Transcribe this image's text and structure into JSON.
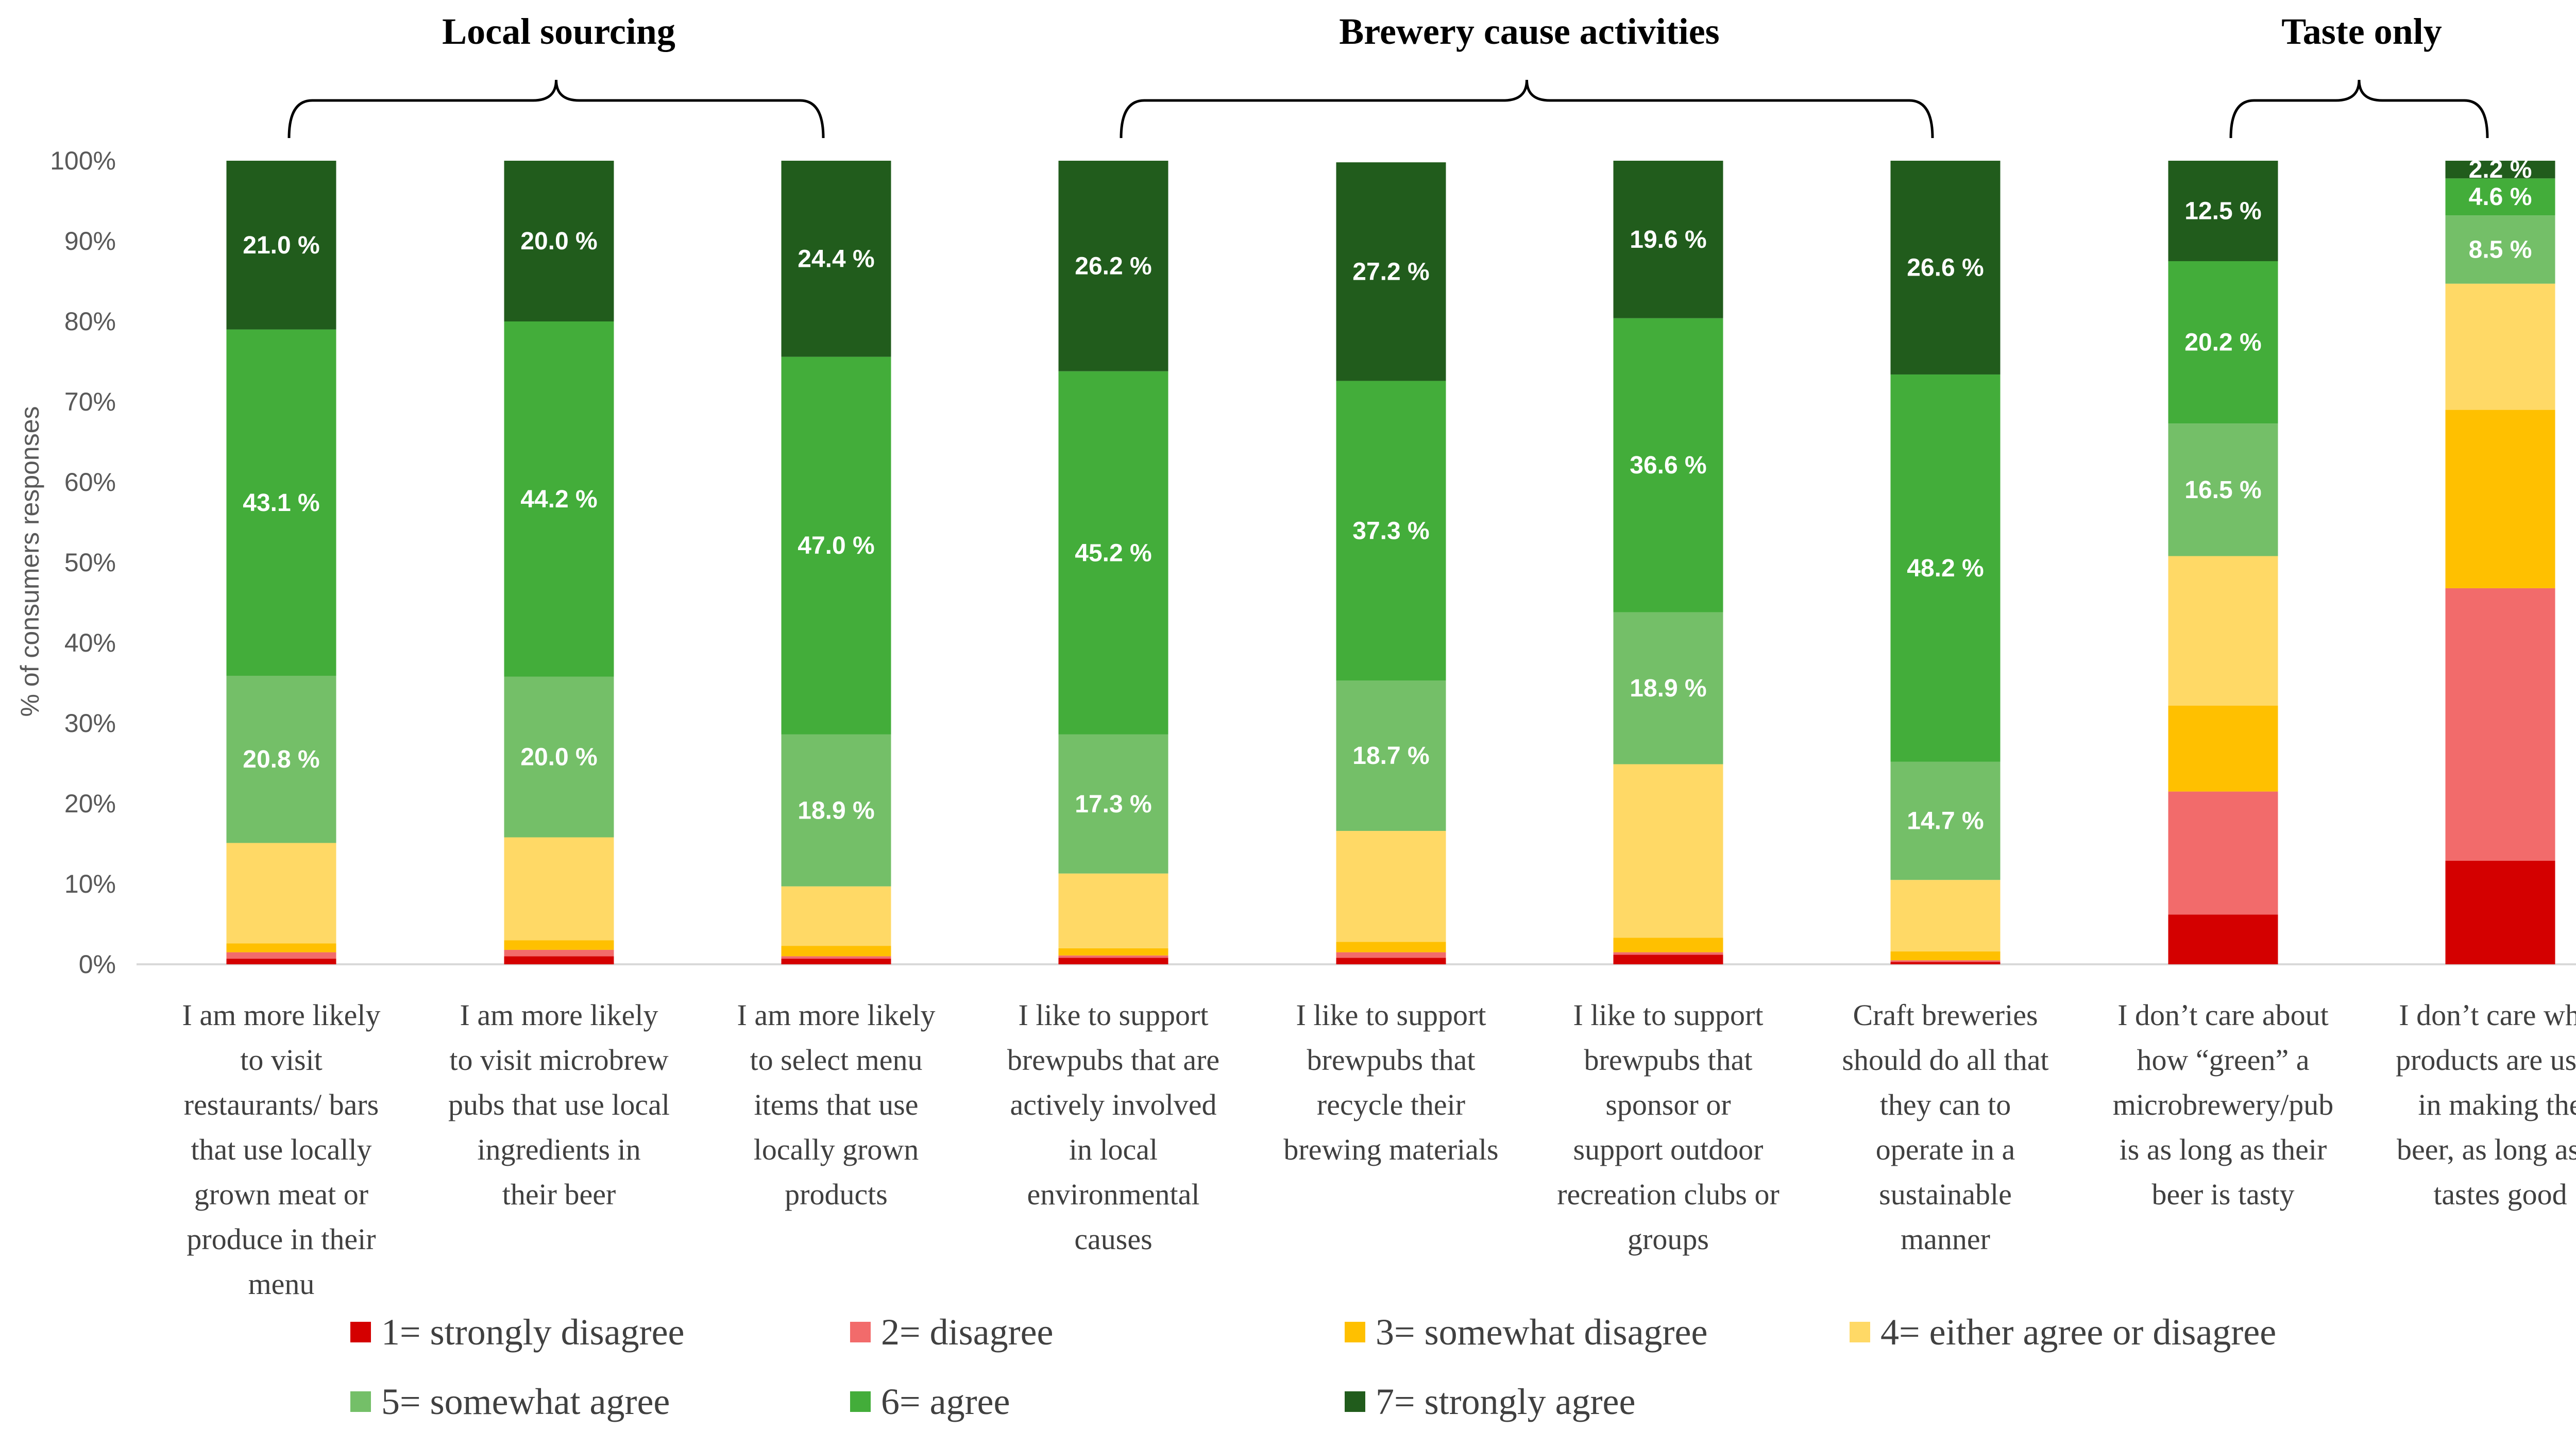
{
  "chart_data": {
    "type": "bar",
    "stacked": true,
    "percent": true,
    "ylabel": "% of consumers responses",
    "ylim": [
      0,
      100
    ],
    "yticks": [
      "0%",
      "10%",
      "20%",
      "30%",
      "40%",
      "50%",
      "60%",
      "70%",
      "80%",
      "90%",
      "100%"
    ],
    "grid": false,
    "legend_position": "bottom",
    "groups": [
      {
        "label": "Local sourcing",
        "from": 0,
        "to": 2
      },
      {
        "label": "Brewery cause activities",
        "from": 3,
        "to": 6
      },
      {
        "label": "Taste only",
        "from": 7,
        "to": 8
      }
    ],
    "categories": [
      "I am more likely to visit restaurants/ bars that use locally grown meat or produce in their menu",
      "I am more likely to visit microbrew pubs that use local ingredients in their beer",
      "I am more likely to select menu items that use locally grown products",
      "I like to support brewpubs that are actively involved in local environmental causes",
      "I like to support brewpubs that recycle their brewing materials",
      "I like to support brewpubs that sponsor or support outdoor recreation clubs or groups",
      "Craft breweries should do all that they can to operate in a sustainable manner",
      "I don’t care about how “green” a microbrewery/pub is as long as their beer is tasty",
      "I don’t care what products are used in making the beer, as long as it tastes good"
    ],
    "category_lines": [
      [
        "I am more likely",
        "to visit",
        "restaurants/ bars",
        "that use locally",
        "grown meat or",
        "produce in their",
        "menu"
      ],
      [
        "I am more likely",
        "to visit microbrew",
        "pubs that use local",
        "ingredients in",
        "their beer"
      ],
      [
        "I am more likely",
        "to select menu",
        "items that use",
        "locally grown",
        "products"
      ],
      [
        "I like to support",
        "brewpubs that are",
        "actively involved",
        "in local",
        "environmental",
        "causes"
      ],
      [
        "I like to support",
        "brewpubs that",
        "recycle their",
        "brewing materials"
      ],
      [
        "I like to support",
        "brewpubs that",
        "sponsor or",
        "support outdoor",
        "recreation clubs or",
        "groups"
      ],
      [
        "Craft breweries",
        "should do all that",
        "they can to",
        "operate in a",
        "sustainable",
        "manner"
      ],
      [
        "I don’t care about",
        "how “green” a",
        "microbrewery/pub",
        "is as long as their",
        "beer is tasty"
      ],
      [
        "I don’t care what",
        "products are used",
        "in making the",
        "beer, as long as it",
        "tastes good"
      ]
    ],
    "series": [
      {
        "name": "1= strongly disagree",
        "color": "#d40000",
        "values": [
          0.7,
          1.0,
          0.7,
          0.8,
          0.8,
          1.2,
          0.3,
          6.2,
          12.9
        ]
      },
      {
        "name": "2= disagree",
        "color": "#f26b6b",
        "values": [
          0.8,
          0.8,
          0.3,
          0.3,
          0.7,
          0.3,
          0.2,
          15.3,
          33.9
        ]
      },
      {
        "name": "3= somewhat disagree",
        "color": "#ffc000",
        "values": [
          1.1,
          1.2,
          1.3,
          0.9,
          1.3,
          1.8,
          1.1,
          10.7,
          22.2
        ]
      },
      {
        "name": "4= either agree or disagree",
        "color": "#ffd966",
        "values": [
          12.5,
          12.8,
          7.4,
          9.3,
          13.8,
          21.6,
          8.9,
          18.6,
          15.7
        ]
      },
      {
        "name": "5= somewhat agree",
        "color": "#74bf68",
        "values": [
          20.8,
          20.0,
          18.9,
          17.3,
          18.7,
          18.9,
          14.7,
          16.5,
          8.5
        ]
      },
      {
        "name": "6= agree",
        "color": "#43ad3a",
        "values": [
          43.1,
          44.2,
          47.0,
          45.2,
          37.3,
          36.6,
          48.2,
          20.2,
          4.6
        ]
      },
      {
        "name": "7= strongly agree",
        "color": "#215c1c",
        "values": [
          21.0,
          20.0,
          24.4,
          26.2,
          27.2,
          19.6,
          26.6,
          12.5,
          2.2
        ]
      }
    ],
    "data_labels": [
      [
        null,
        null,
        null,
        null,
        "20.8 %",
        "43.1 %",
        "21.0 %"
      ],
      [
        null,
        null,
        null,
        null,
        "20.0 %",
        "44.2 %",
        "20.0 %"
      ],
      [
        null,
        null,
        null,
        null,
        "18.9 %",
        "47.0 %",
        "24.4 %"
      ],
      [
        null,
        null,
        null,
        null,
        "17.3 %",
        "45.2 %",
        "26.2 %"
      ],
      [
        null,
        null,
        null,
        null,
        "18.7 %",
        "37.3 %",
        "27.2 %"
      ],
      [
        null,
        null,
        null,
        null,
        "18.9 %",
        "36.6 %",
        "19.6 %"
      ],
      [
        null,
        null,
        null,
        null,
        "14.7 %",
        "48.2 %",
        "26.6 %"
      ],
      [
        null,
        null,
        null,
        null,
        "16.5 %",
        "20.2 %",
        "12.5 %"
      ],
      [
        null,
        null,
        null,
        null,
        "8.5 %",
        "4.6 %",
        "2.2 %"
      ]
    ]
  }
}
